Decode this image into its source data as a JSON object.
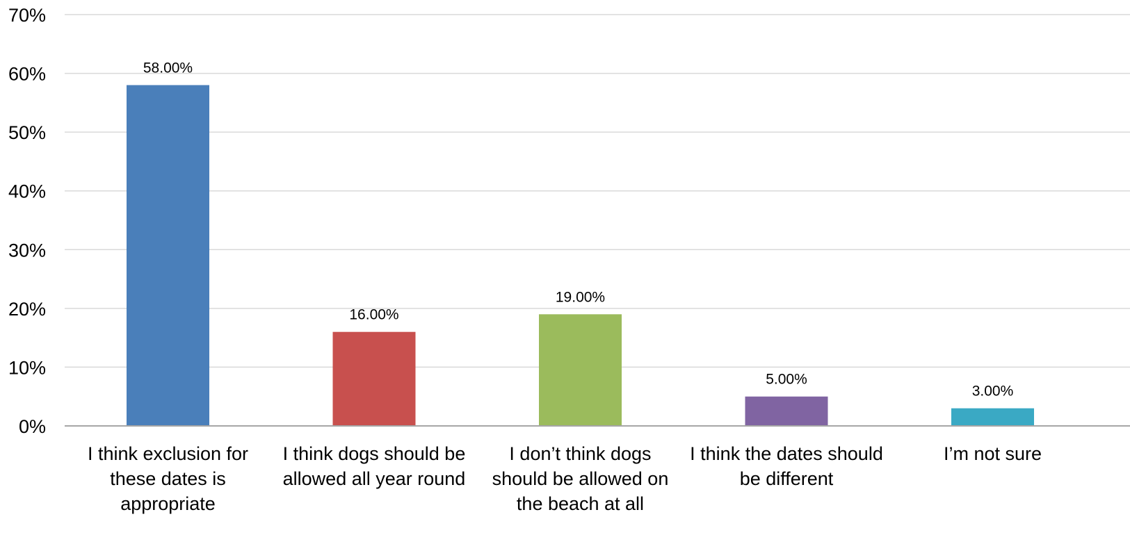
{
  "chart_data": {
    "type": "bar",
    "categories": [
      [
        "I think exclusion for",
        "these dates is",
        "appropriate"
      ],
      [
        "I think dogs should be",
        "allowed all year round"
      ],
      [
        "I don’t think dogs",
        "should be allowed on",
        "the beach at all"
      ],
      [
        "I think the dates should",
        "be different"
      ],
      [
        "I’m not sure"
      ]
    ],
    "values": [
      58,
      16,
      19,
      5,
      3
    ],
    "data_labels": [
      "58.00%",
      "16.00%",
      "19.00%",
      "5.00%",
      "3.00%"
    ],
    "colors": [
      "#4a7fba",
      "#c8504e",
      "#9bbb5c",
      "#8064a2",
      "#3aa9c4"
    ],
    "ylim": [
      0,
      70
    ],
    "yticks": [
      "0%",
      "10%",
      "20%",
      "30%",
      "40%",
      "50%",
      "60%",
      "70%"
    ],
    "grid": true,
    "title": "",
    "xlabel": "",
    "ylabel": ""
  }
}
